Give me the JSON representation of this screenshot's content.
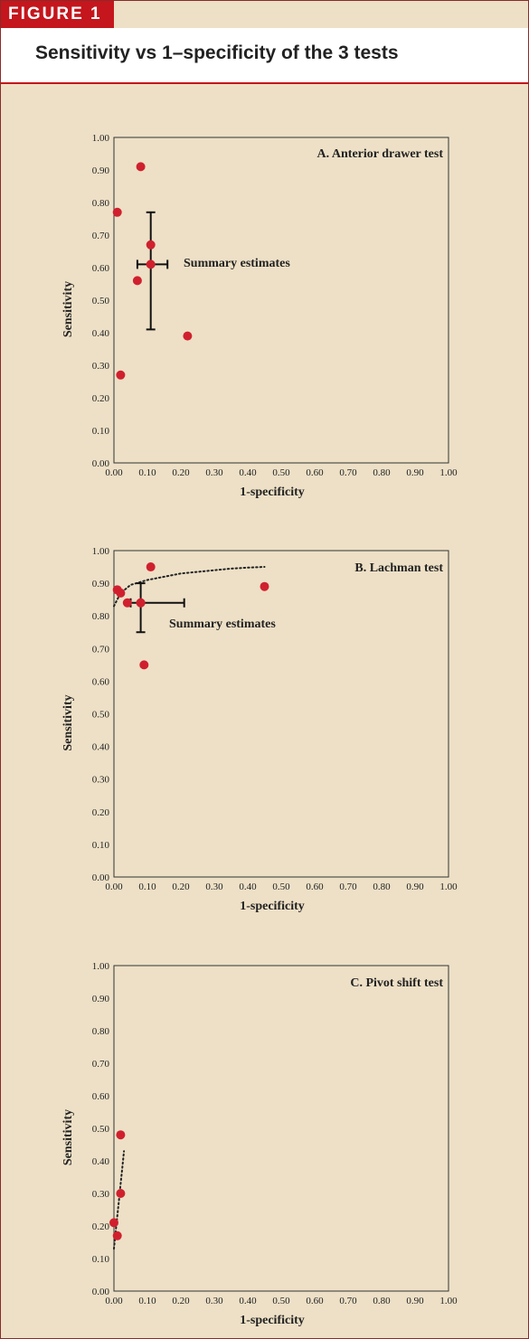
{
  "figure_label": "FIGURE 1",
  "header_title": "Sensitivity vs 1–specificity of the 3 tests",
  "colors": {
    "accent": "#c4161c",
    "panel_bg": "#ede0c6",
    "point": "#d0202e"
  },
  "chart_data": [
    {
      "type": "scatter",
      "title": "A. Anterior drawer test",
      "xlabel": "1-specificity",
      "ylabel": "Sensitivity",
      "xlim": [
        0,
        1
      ],
      "ylim": [
        0,
        1
      ],
      "xticks": [
        "0.00",
        "0.10",
        "0.20",
        "0.30",
        "0.40",
        "0.50",
        "0.60",
        "0.70",
        "0.80",
        "0.90",
        "1.00"
      ],
      "yticks": [
        "0.00",
        "0.10",
        "0.20",
        "0.30",
        "0.40",
        "0.50",
        "0.60",
        "0.70",
        "0.80",
        "0.90",
        "1.00"
      ],
      "grid": false,
      "points": [
        {
          "x": 0.08,
          "y": 0.91
        },
        {
          "x": 0.01,
          "y": 0.77
        },
        {
          "x": 0.11,
          "y": 0.67
        },
        {
          "x": 0.07,
          "y": 0.56
        },
        {
          "x": 0.22,
          "y": 0.39
        },
        {
          "x": 0.02,
          "y": 0.27
        }
      ],
      "summary": {
        "x": 0.11,
        "y": 0.61,
        "x_low": 0.07,
        "x_high": 0.16,
        "y_low": 0.41,
        "y_high": 0.77,
        "label": "Summary estimates"
      },
      "curve": []
    },
    {
      "type": "scatter",
      "title": "B. Lachman test",
      "xlabel": "1-specificity",
      "ylabel": "Sensitivity",
      "xlim": [
        0,
        1
      ],
      "ylim": [
        0,
        1
      ],
      "xticks": [
        "0.00",
        "0.10",
        "0.20",
        "0.30",
        "0.40",
        "0.50",
        "0.60",
        "0.70",
        "0.80",
        "0.90",
        "1.00"
      ],
      "yticks": [
        "0.00",
        "0.10",
        "0.20",
        "0.30",
        "0.40",
        "0.50",
        "0.60",
        "0.70",
        "0.80",
        "0.90",
        "1.00"
      ],
      "grid": false,
      "points": [
        {
          "x": 0.11,
          "y": 0.95
        },
        {
          "x": 0.01,
          "y": 0.88
        },
        {
          "x": 0.02,
          "y": 0.87
        },
        {
          "x": 0.45,
          "y": 0.89
        },
        {
          "x": 0.04,
          "y": 0.84
        },
        {
          "x": 0.08,
          "y": 0.84
        },
        {
          "x": 0.09,
          "y": 0.65
        }
      ],
      "summary": {
        "x": 0.08,
        "y": 0.84,
        "x_low": 0.05,
        "x_high": 0.21,
        "y_low": 0.75,
        "y_high": 0.9,
        "label": "Summary estimates"
      },
      "curve": [
        {
          "x": 0.0,
          "y": 0.83
        },
        {
          "x": 0.02,
          "y": 0.87
        },
        {
          "x": 0.05,
          "y": 0.895
        },
        {
          "x": 0.1,
          "y": 0.91
        },
        {
          "x": 0.15,
          "y": 0.92
        },
        {
          "x": 0.2,
          "y": 0.93
        },
        {
          "x": 0.25,
          "y": 0.935
        },
        {
          "x": 0.3,
          "y": 0.94
        },
        {
          "x": 0.35,
          "y": 0.945
        },
        {
          "x": 0.4,
          "y": 0.948
        },
        {
          "x": 0.45,
          "y": 0.95
        }
      ]
    },
    {
      "type": "scatter",
      "title": "C. Pivot shift test",
      "xlabel": "1-specificity",
      "ylabel": "Sensitivity",
      "xlim": [
        0,
        1
      ],
      "ylim": [
        0,
        1
      ],
      "xticks": [
        "0.00",
        "0.10",
        "0.20",
        "0.30",
        "0.40",
        "0.50",
        "0.60",
        "0.70",
        "0.80",
        "0.90",
        "1.00"
      ],
      "yticks": [
        "0.00",
        "0.10",
        "0.20",
        "0.30",
        "0.40",
        "0.50",
        "0.60",
        "0.70",
        "0.80",
        "0.90",
        "1.00"
      ],
      "grid": false,
      "points": [
        {
          "x": 0.02,
          "y": 0.48
        },
        {
          "x": 0.02,
          "y": 0.3
        },
        {
          "x": 0.0,
          "y": 0.21
        },
        {
          "x": 0.01,
          "y": 0.17
        }
      ],
      "summary": null,
      "curve": [
        {
          "x": 0.0,
          "y": 0.13
        },
        {
          "x": 0.005,
          "y": 0.18
        },
        {
          "x": 0.01,
          "y": 0.23
        },
        {
          "x": 0.015,
          "y": 0.28
        },
        {
          "x": 0.02,
          "y": 0.33
        },
        {
          "x": 0.025,
          "y": 0.38
        },
        {
          "x": 0.03,
          "y": 0.43
        }
      ]
    }
  ]
}
